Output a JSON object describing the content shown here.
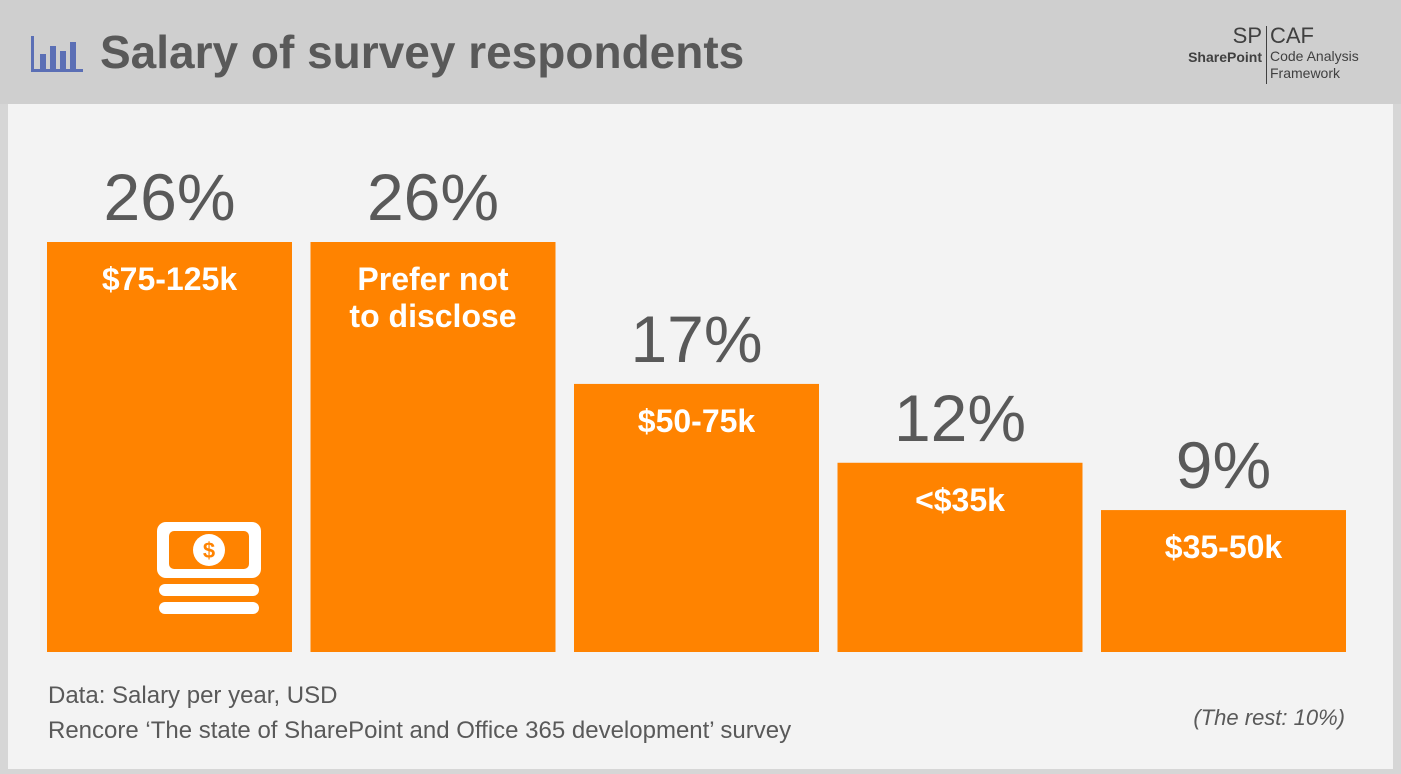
{
  "header": {
    "title": "Salary of survey respondents",
    "icon": "bar-chart-icon",
    "logo": {
      "sp": "SP",
      "sharepoint": "SharePoint",
      "caf": "CAF",
      "caf_full": "Code Analysis\nFramework"
    }
  },
  "colors": {
    "bar": "#ff8300",
    "header_bg": "#cfcfcf",
    "content_bg": "#f3f3f3",
    "text_gray": "#595959",
    "accent_icon": "#5b6fb5"
  },
  "chart_data": {
    "type": "bar",
    "title": "Salary of survey respondents",
    "xlabel": "",
    "ylabel": "",
    "categories": [
      "$75-125k",
      "Prefer not to disclose",
      "$50-75k",
      "<$35k",
      "$35-50k"
    ],
    "value_labels": [
      "26%",
      "26%",
      "17%",
      "12%",
      "9%"
    ],
    "values": [
      26,
      26,
      17,
      12,
      9
    ],
    "ylim": [
      0,
      26
    ],
    "grid": false,
    "legend": "none",
    "bar_icons": [
      "money-icon",
      "",
      "",
      "",
      ""
    ]
  },
  "footer": {
    "note_data": "Data: Salary per year, USD",
    "note_source": "Rencore ‘The state of SharePoint and Office 365 development’ survey",
    "rest": "(The rest: 10%)"
  }
}
